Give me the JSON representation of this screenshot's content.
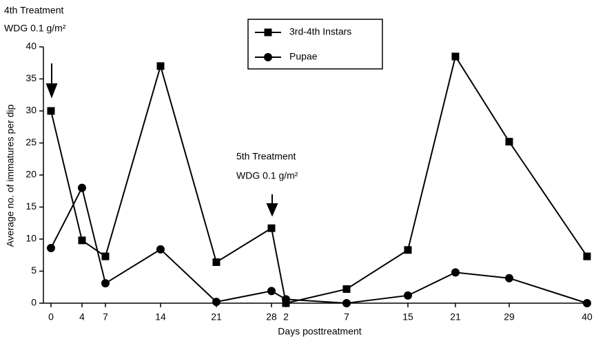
{
  "chart_data": {
    "type": "line",
    "categories": [
      "0",
      "4",
      "7",
      "14",
      "21",
      "28",
      "2",
      "7",
      "15",
      "21",
      "29",
      "40"
    ],
    "series": [
      {
        "name": "3rd-4th Instars",
        "color": "#000000",
        "marker": "square",
        "values": [
          30,
          9.8,
          7.3,
          37,
          6.4,
          11.7,
          0,
          2.2,
          8.3,
          38.5,
          25.2,
          7.3
        ]
      },
      {
        "name": "Pupae",
        "color": "#000000",
        "marker": "circle",
        "values": [
          8.6,
          18,
          3.1,
          8.4,
          0.2,
          1.9,
          0.6,
          0,
          1.2,
          4.8,
          3.9,
          0
        ]
      }
    ],
    "ylim": [
      0,
      40
    ],
    "yticks": [
      0,
      5,
      10,
      15,
      20,
      25,
      30,
      35,
      40
    ],
    "xlabel": "Days posttreatment",
    "ylabel": "Average no. of immatures per dip",
    "annotations": [
      "4th Treatment",
      "WDG 0.1 g/m²",
      "5th Treatment",
      "WDG 0.1 g/m²"
    ],
    "grid": false
  }
}
